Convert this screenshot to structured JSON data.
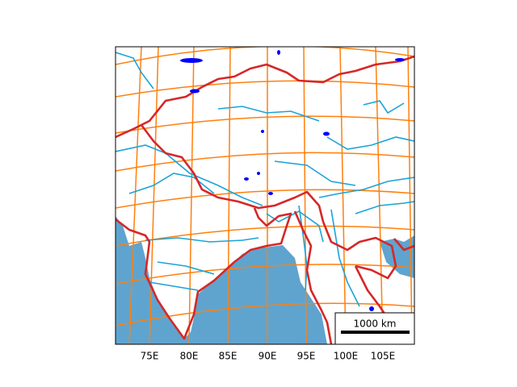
{
  "x_tick_labels": [
    "75E",
    "80E",
    "85E",
    "90E",
    "95E",
    "100E",
    "105E"
  ],
  "scale_bar": {
    "label": "1000 km"
  }
}
